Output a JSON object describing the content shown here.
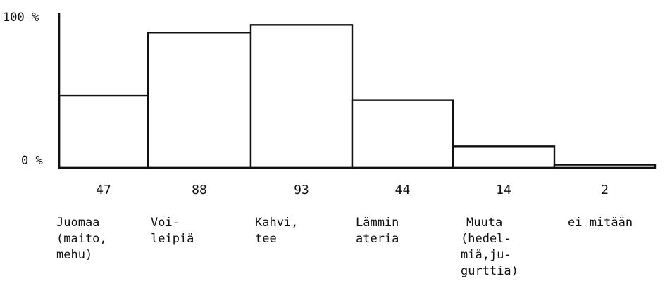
{
  "chart_data": {
    "type": "bar",
    "ylim": [
      0,
      100
    ],
    "ytick_labels": [
      "0 %",
      "100 %"
    ],
    "categories": [
      [
        "Juomaa",
        "(maito,",
        "mehu)"
      ],
      [
        "Voi-",
        "leipiä"
      ],
      [
        "Kahvi,",
        "tee"
      ],
      [
        "Lämmin",
        "ateria"
      ],
      [
        "Muuta",
        "(hedel-",
        "miä,ju-",
        "gurttia)"
      ],
      [
        "ei mitään"
      ]
    ],
    "values": [
      47,
      88,
      93,
      44,
      14,
      2
    ],
    "value_labels": [
      "47",
      "88",
      "93",
      "44",
      "14",
      "2"
    ]
  }
}
